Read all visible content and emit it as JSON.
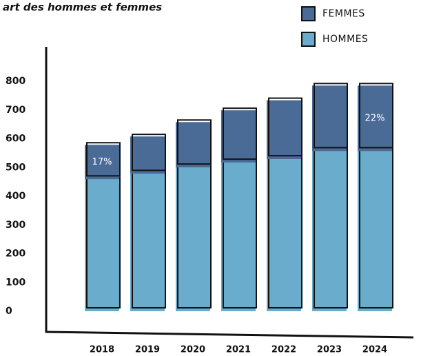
{
  "chart_data": {
    "type": "stacked_bar",
    "title": "art des hommes et femmes",
    "categories": [
      "2018",
      "2019",
      "2020",
      "2021",
      "2022",
      "2023",
      "2024"
    ],
    "series": [
      {
        "name": "HOMMES",
        "color": "#6aaccc",
        "values": [
          459,
          478,
          500,
          517,
          529,
          557,
          557
        ]
      },
      {
        "name": "FEMMES",
        "color": "#4a6b96",
        "values": [
          120,
          130,
          158,
          182,
          205,
          228,
          228
        ]
      }
    ],
    "annotations": [
      {
        "category": "2018",
        "text": "17%"
      },
      {
        "category": "2024",
        "text": "22%"
      }
    ],
    "ylim": [
      0,
      800
    ],
    "yticks": [
      0,
      100,
      200,
      300,
      400,
      500,
      600,
      700,
      800
    ],
    "legend": "top-right",
    "grid": false
  }
}
